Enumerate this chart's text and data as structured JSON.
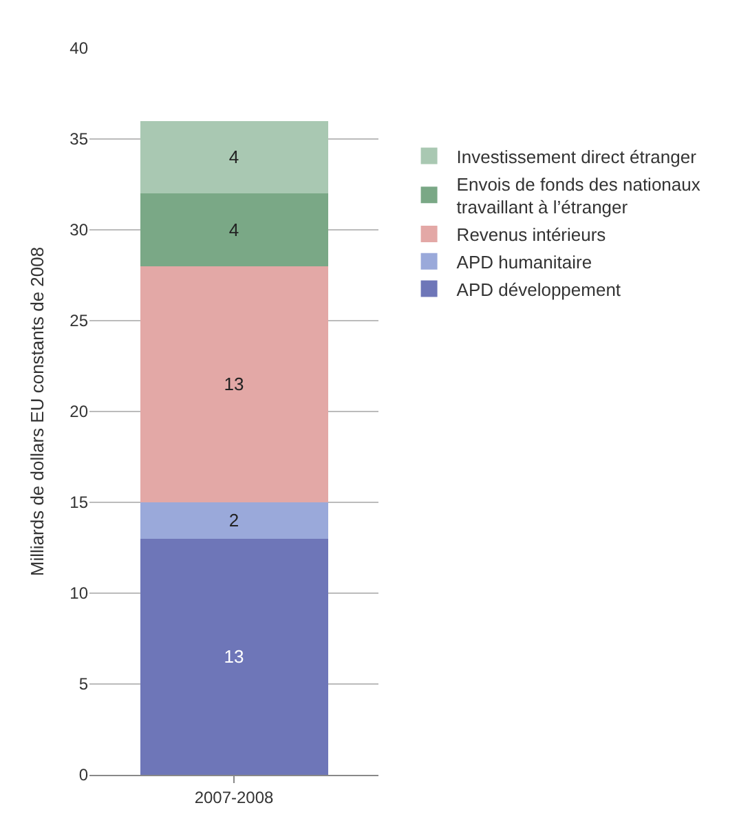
{
  "chart_data": {
    "type": "bar",
    "stacked": true,
    "ylabel": "Milliards de dollars EU constants de 2008",
    "categories": [
      "2007-2008"
    ],
    "series": [
      {
        "name": "APD développement",
        "color": "#6e76b8",
        "values": [
          13
        ]
      },
      {
        "name": "APD humanitaire",
        "color": "#9aa9da",
        "values": [
          2
        ]
      },
      {
        "name": "Revenus intérieurs",
        "color": "#e3a8a6",
        "values": [
          13
        ]
      },
      {
        "name": "Envois de fonds des nationaux travaillant à l’étranger",
        "color": "#7aa886",
        "values": [
          4
        ]
      },
      {
        "name": "Investissement direct étranger",
        "color": "#a9c8b2",
        "values": [
          4
        ]
      }
    ],
    "ylim": [
      0,
      40
    ],
    "yticks": [
      0,
      5,
      10,
      15,
      20,
      25,
      30,
      35,
      40
    ],
    "grid": "y",
    "legend": "right",
    "data_labels": true
  }
}
